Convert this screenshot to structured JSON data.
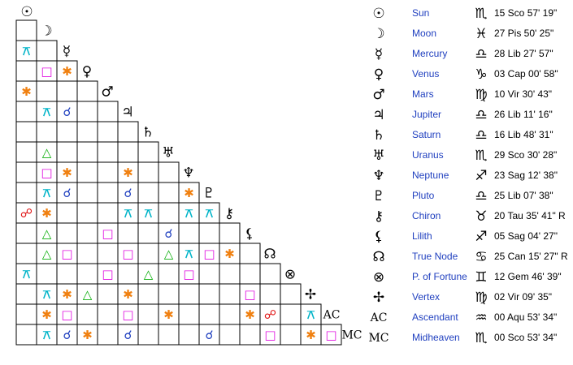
{
  "bodies": [
    {
      "glyph": "☉",
      "name": "Sun",
      "sign": "♏",
      "position": "15 Sco 57' 19\""
    },
    {
      "glyph": "☽",
      "name": "Moon",
      "sign": "♓",
      "position": "27 Pis 50' 25\""
    },
    {
      "glyph": "☿",
      "name": "Mercury",
      "sign": "♎",
      "position": "28 Lib 27' 57\""
    },
    {
      "glyph": "♀",
      "name": "Venus",
      "sign": "♑",
      "position": "03 Cap 00' 58\""
    },
    {
      "glyph": "♂",
      "name": "Mars",
      "sign": "♍",
      "position": "10 Vir 30' 43\""
    },
    {
      "glyph": "♃",
      "name": "Jupiter",
      "sign": "♎",
      "position": "26 Lib 11' 16\""
    },
    {
      "glyph": "♄",
      "name": "Saturn",
      "sign": "♎",
      "position": "16 Lib 48' 31\""
    },
    {
      "glyph": "♅",
      "name": "Uranus",
      "sign": "♏",
      "position": "29 Sco 30' 28\""
    },
    {
      "glyph": "♆",
      "name": "Neptune",
      "sign": "♐",
      "position": "23 Sag 12' 38\""
    },
    {
      "glyph": "♇",
      "name": "Pluto",
      "sign": "♎",
      "position": "25 Lib 07' 38\""
    },
    {
      "glyph": "⚷",
      "name": "Chiron",
      "sign": "♉",
      "position": "20 Tau 35' 41\" R"
    },
    {
      "glyph": "⚸",
      "name": "Lilith",
      "sign": "♐",
      "position": "05 Sag 04' 27\""
    },
    {
      "glyph": "☊",
      "name": "True Node",
      "sign": "♋",
      "position": "25 Can 15' 27\" R"
    },
    {
      "glyph": "⊗",
      "name": "P. of Fortune",
      "sign": "♊",
      "position": "12 Gem 46' 39\""
    },
    {
      "glyph": "✢",
      "name": "Vertex",
      "sign": "♍",
      "position": "02 Vir 09' 35\""
    },
    {
      "glyph": "AC",
      "name": "Ascendant",
      "sign": "♒",
      "position": "00 Aqu 53' 34\""
    },
    {
      "glyph": "MC",
      "name": "Midheaven",
      "sign": "♏",
      "position": "00 Sco 53' 34\""
    }
  ],
  "aspect_colors": {
    "⚻": "#00b4c8",
    "□": "#e010e0",
    "✱": "#f08010",
    "☌": "#1f3fbf",
    "☍": "#e01010",
    "△": "#10b010"
  },
  "aspect_grid": [
    [
      null
    ],
    [
      "⚻",
      null
    ],
    [
      null,
      "□",
      "✱"
    ],
    [
      "✱",
      null,
      null,
      null
    ],
    [
      null,
      "⚻",
      "☌",
      null,
      null
    ],
    [
      null,
      null,
      null,
      null,
      null,
      null
    ],
    [
      null,
      "△",
      null,
      null,
      null,
      null,
      null
    ],
    [
      null,
      "□",
      "✱",
      null,
      null,
      "✱",
      null,
      null
    ],
    [
      null,
      "⚻",
      "☌",
      null,
      null,
      "☌",
      null,
      null,
      "✱"
    ],
    [
      "☍",
      "✱",
      null,
      null,
      null,
      "⚻",
      "⚻",
      null,
      "⚻",
      "⚻"
    ],
    [
      null,
      "△",
      null,
      null,
      "□",
      null,
      null,
      "☌",
      null,
      null,
      null
    ],
    [
      null,
      "△",
      "□",
      null,
      null,
      "□",
      null,
      "△",
      "⚻",
      "□",
      "✱",
      null
    ],
    [
      "⚻",
      null,
      null,
      null,
      "□",
      null,
      "△",
      null,
      "□",
      null,
      null,
      null,
      null
    ],
    [
      null,
      "⚻",
      "✱",
      "△",
      null,
      "✱",
      null,
      null,
      null,
      null,
      null,
      "□",
      null,
      null
    ],
    [
      null,
      "✱",
      "□",
      null,
      null,
      "□",
      null,
      "✱",
      null,
      null,
      null,
      "✱",
      "☍",
      null,
      "⚻"
    ],
    [
      null,
      "⚻",
      "☌",
      "✱",
      null,
      "☌",
      null,
      null,
      null,
      "☌",
      null,
      null,
      "□",
      null,
      "✱",
      "□"
    ]
  ]
}
